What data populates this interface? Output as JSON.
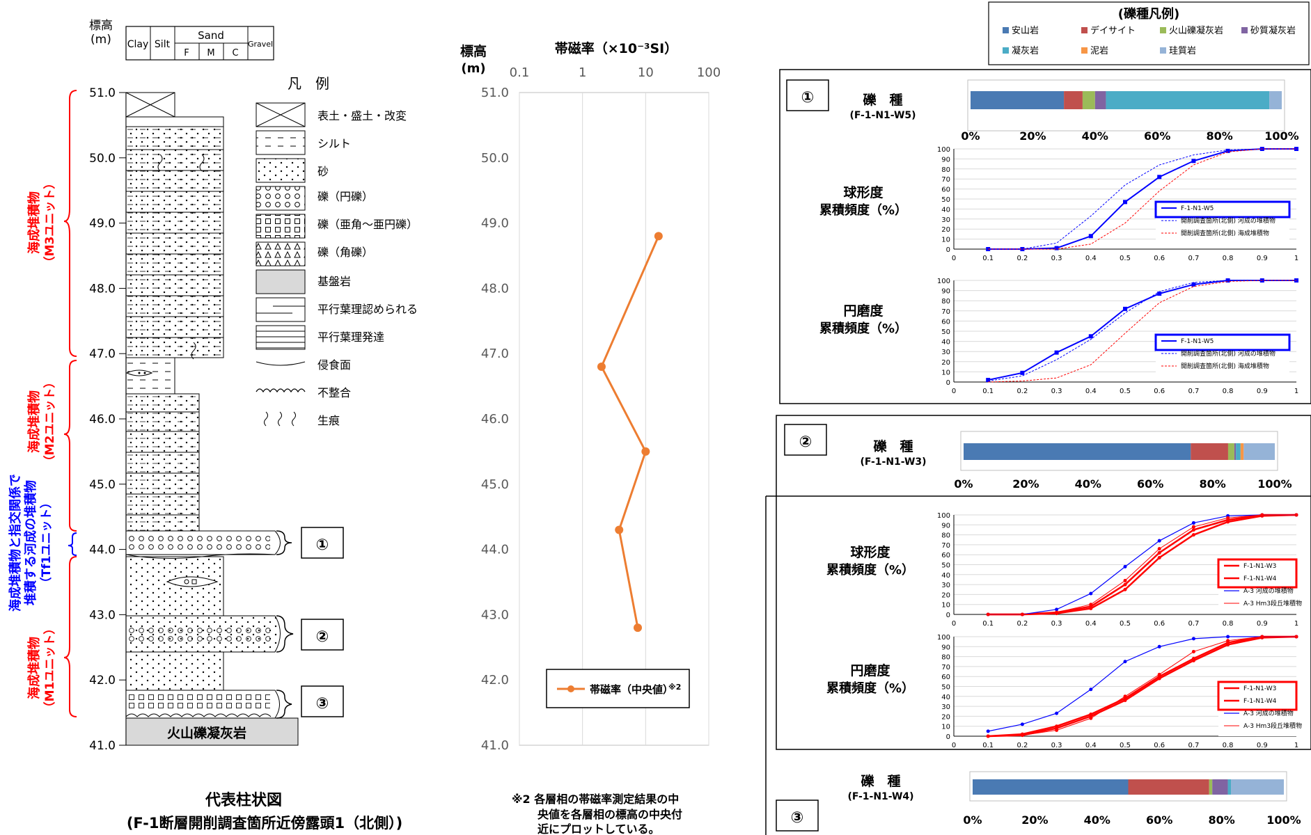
{
  "column": {
    "elev_title": "標高",
    "elev_unit": "(m)",
    "grain_header": {
      "clay": "Clay",
      "silt": "Silt",
      "sand": "Sand",
      "sand_sub": [
        "F",
        "M",
        "C"
      ],
      "gravel": "Gravel"
    },
    "ticks": [
      "51.0",
      "50.0",
      "49.0",
      "48.0",
      "47.0",
      "46.0",
      "45.0",
      "44.0",
      "43.0",
      "42.0",
      "41.0"
    ],
    "bedrock_label": "火山礫凝灰岩",
    "units": [
      {
        "label": "海成堆積物",
        "sub": "（M3ユニット）",
        "color": "#ff0000"
      },
      {
        "label": "海成堆積物",
        "sub": "（M2ユニット）",
        "color": "#ff0000"
      },
      {
        "label": "海成堆積物と指交関係で",
        "label2": "堆積する河成の堆積物",
        "sub": "（Tf1ユニット）",
        "color": "#0000ff"
      },
      {
        "label": "海成堆積物",
        "sub": "（M1ユニット）",
        "color": "#ff0000"
      }
    ],
    "sample_markers": [
      "①",
      "②",
      "③"
    ],
    "caption1": "代表柱状図",
    "caption2": "(F-1断層開削調査箇所近傍露頭1（北側）)"
  },
  "legend": {
    "title": "凡　例",
    "items": [
      "表土・盛土・改変",
      "シルト",
      "砂",
      "礫（円礫）",
      "礫（亜角～亜円礫）",
      "礫（角礫）",
      "基盤岩",
      "平行葉理認められる",
      "平行葉理発達",
      "侵食面",
      "不整合",
      "生痕"
    ]
  },
  "mag_chart": {
    "title": "帯磁率（×10⁻³SI）",
    "ylabel_1": "標高",
    "ylabel_2": "(m)",
    "x_ticks": [
      "0.1",
      "1",
      "10",
      "100"
    ],
    "y_ticks": [
      "51.0",
      "50.0",
      "49.0",
      "48.0",
      "47.0",
      "46.0",
      "45.0",
      "44.0",
      "43.0",
      "42.0",
      "41.0"
    ],
    "legend_label": "帯磁率（中央値）",
    "legend_sup": "※2",
    "note_1": "※2 各層相の帯磁率測定結果の中",
    "note_2": "央値を各層相の標高の中央付",
    "note_3": "近にプロットしている。",
    "series_color": "#ed7d31"
  },
  "chart_data": [
    {
      "type": "line",
      "title": "帯磁率（×10⁻³SI）",
      "xlabel": "",
      "ylabel": "標高 (m)",
      "xscale": "log",
      "xlim": [
        0.1,
        100
      ],
      "ylim": [
        41.0,
        51.0
      ],
      "series": [
        {
          "name": "帯磁率（中央値）",
          "x": [
            16,
            2,
            10,
            3.8,
            7.5
          ],
          "y": [
            48.8,
            46.8,
            45.5,
            44.3,
            42.8
          ]
        }
      ]
    },
    {
      "type": "bar",
      "title": "礫　種",
      "subtitle": "(F-1-N1-W5)",
      "stacked": true,
      "categories": [
        "安山岩",
        "デイサイト",
        "火山礫凝灰岩",
        "砂質凝灰岩",
        "凝灰岩",
        "泥岩",
        "珪質岩"
      ],
      "values": [
        30,
        6,
        4,
        3.5,
        52.5,
        0,
        4
      ]
    },
    {
      "type": "line",
      "title": "球形度 累積頻度（%）",
      "xlim": [
        0,
        1
      ],
      "ylim": [
        0,
        100
      ],
      "series": [
        {
          "name": "F-1-N1-W5",
          "x": [
            0.1,
            0.2,
            0.3,
            0.4,
            0.5,
            0.6,
            0.7,
            0.8,
            0.9,
            1.0
          ],
          "y": [
            0,
            0,
            1,
            13,
            47,
            72,
            88,
            98,
            100,
            100
          ]
        },
        {
          "name": "開削調査箇所(北側) 河成の堆積物",
          "x": [
            0.1,
            0.2,
            0.3,
            0.4,
            0.5,
            0.6,
            0.7,
            0.8,
            0.9,
            1.0
          ],
          "y": [
            0,
            0,
            6,
            33,
            64,
            84,
            94,
            99,
            100,
            100
          ]
        },
        {
          "name": "開削調査箇所(北側) 海成堆積物",
          "x": [
            0.1,
            0.2,
            0.3,
            0.4,
            0.5,
            0.6,
            0.7,
            0.8,
            0.9,
            1.0
          ],
          "y": [
            0,
            0,
            0,
            5,
            26,
            58,
            84,
            97,
            100,
            100
          ]
        }
      ]
    },
    {
      "type": "line",
      "title": "円磨度 累積頻度（%）",
      "xlim": [
        0,
        1
      ],
      "ylim": [
        0,
        100
      ],
      "series": [
        {
          "name": "F-1-N1-W5",
          "x": [
            0.1,
            0.2,
            0.3,
            0.4,
            0.5,
            0.6,
            0.7,
            0.8,
            0.9,
            1.0
          ],
          "y": [
            2,
            9,
            29,
            45,
            72,
            87,
            96,
            100,
            100,
            100
          ]
        },
        {
          "name": "開削調査箇所(北側) 河成の堆積物",
          "x": [
            0.1,
            0.2,
            0.3,
            0.4,
            0.5,
            0.6,
            0.7,
            0.8,
            0.9,
            1.0
          ],
          "y": [
            1,
            6,
            22,
            42,
            68,
            89,
            98,
            100,
            100,
            100
          ]
        },
        {
          "name": "開削調査箇所(北側) 海成堆積物",
          "x": [
            0.1,
            0.2,
            0.3,
            0.4,
            0.5,
            0.6,
            0.7,
            0.8,
            0.9,
            1.0
          ],
          "y": [
            0,
            1,
            4,
            17,
            48,
            78,
            94,
            99,
            100,
            100
          ]
        }
      ]
    },
    {
      "type": "bar",
      "title": "礫　種",
      "subtitle": "(F-1-N1-W3)",
      "stacked": true,
      "categories": [
        "安山岩",
        "デイサイト",
        "火山礫凝灰岩",
        "砂質凝灰岩",
        "凝灰岩",
        "泥岩",
        "珪質岩"
      ],
      "values": [
        73,
        12,
        2,
        0.5,
        1.5,
        1,
        10
      ]
    },
    {
      "type": "line",
      "title": "球形度 累積頻度（%）",
      "xlim": [
        0,
        1
      ],
      "ylim": [
        0,
        100
      ],
      "series": [
        {
          "name": "F-1-N1-W3",
          "x": [
            0.1,
            0.2,
            0.3,
            0.4,
            0.5,
            0.6,
            0.7,
            0.8,
            0.9,
            1.0
          ],
          "y": [
            0,
            0,
            2,
            8,
            30,
            62,
            85,
            95,
            100,
            100
          ]
        },
        {
          "name": "F-1-N1-W4",
          "x": [
            0.1,
            0.2,
            0.3,
            0.4,
            0.5,
            0.6,
            0.7,
            0.8,
            0.9,
            1.0
          ],
          "y": [
            0,
            0,
            1,
            6,
            25,
            57,
            80,
            93,
            99,
            100
          ]
        },
        {
          "name": "A-3 河成の堆積物",
          "x": [
            0.1,
            0.2,
            0.3,
            0.4,
            0.5,
            0.6,
            0.7,
            0.8,
            0.9,
            1.0
          ],
          "y": [
            0,
            0,
            5,
            21,
            48,
            74,
            92,
            99,
            100,
            100
          ]
        },
        {
          "name": "A-3 Hm3段丘堆積物",
          "x": [
            0.1,
            0.2,
            0.3,
            0.4,
            0.5,
            0.6,
            0.7,
            0.8,
            0.9,
            1.0
          ],
          "y": [
            0,
            0,
            2,
            10,
            34,
            66,
            88,
            97,
            100,
            100
          ]
        }
      ]
    },
    {
      "type": "line",
      "title": "円磨度 累積頻度（%）",
      "xlim": [
        0,
        1
      ],
      "ylim": [
        0,
        100
      ],
      "series": [
        {
          "name": "F-1-N1-W3",
          "x": [
            0.1,
            0.2,
            0.3,
            0.4,
            0.5,
            0.6,
            0.7,
            0.8,
            0.9,
            1.0
          ],
          "y": [
            0,
            2,
            10,
            22,
            38,
            60,
            78,
            94,
            100,
            100
          ]
        },
        {
          "name": "F-1-N1-W4",
          "x": [
            0.1,
            0.2,
            0.3,
            0.4,
            0.5,
            0.6,
            0.7,
            0.8,
            0.9,
            1.0
          ],
          "y": [
            0,
            1,
            8,
            20,
            36,
            58,
            76,
            92,
            99,
            100
          ]
        },
        {
          "name": "A-3 河成の堆積物",
          "x": [
            0.1,
            0.2,
            0.3,
            0.4,
            0.5,
            0.6,
            0.7,
            0.8,
            0.9,
            1.0
          ],
          "y": [
            5,
            12,
            23,
            47,
            75,
            90,
            98,
            100,
            100,
            100
          ]
        },
        {
          "name": "A-3 Hm3段丘堆積物",
          "x": [
            0.1,
            0.2,
            0.3,
            0.4,
            0.5,
            0.6,
            0.7,
            0.8,
            0.9,
            1.0
          ],
          "y": [
            0,
            1,
            6,
            18,
            40,
            62,
            85,
            96,
            100,
            100
          ]
        }
      ]
    },
    {
      "type": "bar",
      "title": "礫　種",
      "subtitle": "(F-1-N1-W4)",
      "stacked": true,
      "categories": [
        "安山岩",
        "デイサイト",
        "火山礫凝灰岩",
        "砂質凝灰岩",
        "凝灰岩",
        "泥岩",
        "珪質岩"
      ],
      "values": [
        50,
        26,
        1,
        5,
        1,
        0,
        17
      ]
    }
  ],
  "gravel_legend": {
    "title": "(礫種凡例)",
    "items": [
      {
        "label": "安山岩",
        "color": "#4a7ab3"
      },
      {
        "label": "デイサイト",
        "color": "#c0504d"
      },
      {
        "label": "火山礫凝灰岩",
        "color": "#9bbb59"
      },
      {
        "label": "砂質凝灰岩",
        "color": "#8064a2"
      },
      {
        "label": "凝灰岩",
        "color": "#4bacc6"
      },
      {
        "label": "泥岩",
        "color": "#f79646"
      },
      {
        "label": "珪質岩",
        "color": "#95b3d7"
      }
    ]
  },
  "panels": [
    {
      "marker": "①",
      "bar_title": "礫　種",
      "bar_sub": "(F-1-N1-W5)",
      "pct_ticks": [
        "0%",
        "20%",
        "40%",
        "60%",
        "80%",
        "100%"
      ],
      "sph_title": "球形度",
      "rnd_title": "円磨度",
      "cum_label": "累積頻度（%）",
      "legend": [
        "F-1-N1-W5",
        "開削調査箇所(北側) 河成の堆積物",
        "開削調査箇所(北側) 海成堆積物"
      ],
      "y_ticks": [
        "100",
        "90",
        "80",
        "70",
        "60",
        "50",
        "40",
        "30",
        "20",
        "10",
        "0"
      ],
      "x_ticks": [
        "0",
        "0.1",
        "0.2",
        "0.3",
        "0.4",
        "0.5",
        "0.6",
        "0.7",
        "0.8",
        "0.9",
        "1"
      ]
    },
    {
      "marker": "②",
      "bar_title": "礫　種",
      "bar_sub": "(F-1-N1-W3)",
      "pct_ticks": [
        "0%",
        "20%",
        "40%",
        "60%",
        "80%",
        "100%"
      ],
      "sph_title": "球形度",
      "rnd_title": "円磨度",
      "cum_label": "累積頻度（%）",
      "legend": [
        "F-1-N1-W3",
        "F-1-N1-W4",
        "A-3  河成の堆積物",
        "A-3  Hm3段丘堆積物"
      ],
      "y_ticks": [
        "100",
        "90",
        "80",
        "70",
        "60",
        "50",
        "40",
        "30",
        "20",
        "10",
        "0"
      ],
      "x_ticks": [
        "0",
        "0.1",
        "0.2",
        "0.3",
        "0.4",
        "0.5",
        "0.6",
        "0.7",
        "0.8",
        "0.9",
        "1"
      ]
    },
    {
      "marker": "③",
      "bar_title": "礫　種",
      "bar_sub": "(F-1-N1-W4)",
      "pct_ticks": [
        "0%",
        "20%",
        "40%",
        "60%",
        "80%",
        "100%"
      ]
    }
  ]
}
